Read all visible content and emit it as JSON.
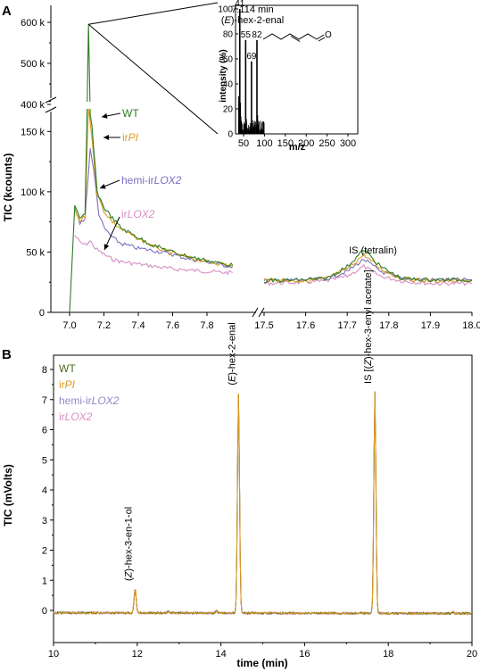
{
  "chart_data": [
    {
      "panel": "A",
      "type": "line",
      "ylabel": "TIC (kcounts)",
      "y_break": [
        200,
        400
      ],
      "y_ticks": [
        "0",
        "50 k",
        "100 k",
        "150 k",
        "400 k",
        "500 k",
        "600 k"
      ],
      "x_break": [
        7.95,
        17.5
      ],
      "x_ticks_left": [
        "7.0",
        "7.2",
        "7.4",
        "7.6",
        "7.8"
      ],
      "x_ticks_right": [
        "17.5",
        "17.6",
        "17.7",
        "17.8",
        "17.9",
        "18.0"
      ],
      "series": [
        {
          "name": "WT",
          "name_main": "WT",
          "name_italic": "",
          "color": "#2e7d24",
          "points_left": [
            [
              7.0,
              0
            ],
            [
              7.03,
              88
            ],
            [
              7.06,
              77
            ],
            [
              7.09,
              82
            ],
            [
              7.11,
              595
            ],
            [
              7.13,
              155
            ],
            [
              7.16,
              100
            ],
            [
              7.2,
              87
            ],
            [
              7.25,
              78
            ],
            [
              7.3,
              70
            ],
            [
              7.35,
              66
            ],
            [
              7.4,
              62
            ],
            [
              7.45,
              58
            ],
            [
              7.5,
              55
            ],
            [
              7.6,
              50
            ],
            [
              7.7,
              46
            ],
            [
              7.8,
              43
            ],
            [
              7.9,
              40
            ],
            [
              7.95,
              39
            ]
          ],
          "points_right": [
            [
              17.5,
              26
            ],
            [
              17.6,
              27
            ],
            [
              17.65,
              28
            ],
            [
              17.7,
              38
            ],
            [
              17.74,
              52
            ],
            [
              17.78,
              38
            ],
            [
              17.83,
              28
            ],
            [
              17.9,
              27
            ],
            [
              18.0,
              27
            ]
          ]
        },
        {
          "name": "irPI",
          "name_main": "ir",
          "name_italic": "PI",
          "color": "#e19a1f",
          "points_left": [
            [
              7.03,
              85
            ],
            [
              7.06,
              76
            ],
            [
              7.09,
              80
            ],
            [
              7.11,
              170
            ],
            [
              7.13,
              145
            ],
            [
              7.16,
              98
            ],
            [
              7.2,
              84
            ],
            [
              7.25,
              75
            ],
            [
              7.3,
              69
            ],
            [
              7.35,
              65
            ],
            [
              7.4,
              61
            ],
            [
              7.5,
              54
            ],
            [
              7.6,
              49
            ],
            [
              7.7,
              45
            ],
            [
              7.8,
              42
            ],
            [
              7.9,
              40
            ],
            [
              7.95,
              38
            ]
          ],
          "points_right": [
            [
              17.5,
              27
            ],
            [
              17.6,
              26
            ],
            [
              17.65,
              28
            ],
            [
              17.7,
              36
            ],
            [
              17.74,
              48
            ],
            [
              17.78,
              36
            ],
            [
              17.83,
              28
            ],
            [
              17.9,
              26
            ],
            [
              18.0,
              26
            ]
          ]
        },
        {
          "name": "hemi-irLOX2",
          "name_main": "hemi-ir",
          "name_italic": "LOX2",
          "color": "#7b6fc0",
          "points_left": [
            [
              7.03,
              86
            ],
            [
              7.06,
              74
            ],
            [
              7.09,
              78
            ],
            [
              7.12,
              136
            ],
            [
              7.14,
              118
            ],
            [
              7.17,
              82
            ],
            [
              7.2,
              70
            ],
            [
              7.25,
              62
            ],
            [
              7.3,
              57
            ],
            [
              7.35,
              55
            ],
            [
              7.4,
              53
            ],
            [
              7.5,
              51
            ],
            [
              7.6,
              48
            ],
            [
              7.7,
              44
            ],
            [
              7.8,
              42
            ],
            [
              7.9,
              39
            ],
            [
              7.95,
              38
            ]
          ],
          "points_right": [
            [
              17.5,
              26
            ],
            [
              17.6,
              27
            ],
            [
              17.65,
              28
            ],
            [
              17.7,
              34
            ],
            [
              17.74,
              44
            ],
            [
              17.78,
              34
            ],
            [
              17.83,
              28
            ],
            [
              17.9,
              27
            ],
            [
              18.0,
              27
            ]
          ]
        },
        {
          "name": "irLOX2",
          "name_main": "ir",
          "name_italic": "LOX2",
          "color": "#d68fc4",
          "points_left": [
            [
              7.03,
              64
            ],
            [
              7.06,
              58
            ],
            [
              7.09,
              56
            ],
            [
              7.12,
              59
            ],
            [
              7.15,
              53
            ],
            [
              7.2,
              48
            ],
            [
              7.25,
              44
            ],
            [
              7.3,
              42
            ],
            [
              7.4,
              40
            ],
            [
              7.5,
              38
            ],
            [
              7.6,
              36
            ],
            [
              7.7,
              35
            ],
            [
              7.8,
              34
            ],
            [
              7.9,
              33
            ],
            [
              7.95,
              33
            ]
          ],
          "points_right": [
            [
              17.5,
              24
            ],
            [
              17.6,
              25
            ],
            [
              17.65,
              26
            ],
            [
              17.7,
              30
            ],
            [
              17.74,
              38
            ],
            [
              17.78,
              30
            ],
            [
              17.83,
              26
            ],
            [
              17.9,
              24
            ],
            [
              18.0,
              24
            ]
          ]
        }
      ],
      "annotation": "IS (tetralin)",
      "inset": {
        "title_line1": "7.114 min",
        "title_line2": "(E)-hex-2-enal",
        "title_line2_italic": "E",
        "ylabel": "intensity (%)",
        "xlabel": "m/z",
        "x_ticks": [
          "50",
          "100",
          "150",
          "200",
          "250",
          "300"
        ],
        "y_ticks": [
          "0",
          "20",
          "40",
          "60",
          "80",
          "100"
        ],
        "peak_labels": [
          "41",
          "55",
          "69",
          "82"
        ],
        "peaks": [
          [
            39,
            30
          ],
          [
            40,
            15
          ],
          [
            41,
            100
          ],
          [
            42,
            25
          ],
          [
            43,
            14
          ],
          [
            53,
            8
          ],
          [
            54,
            6
          ],
          [
            55,
            75
          ],
          [
            56,
            12
          ],
          [
            57,
            8
          ],
          [
            67,
            6
          ],
          [
            68,
            5
          ],
          [
            69,
            58
          ],
          [
            70,
            7
          ],
          [
            81,
            6
          ],
          [
            82,
            75
          ],
          [
            83,
            15
          ],
          [
            97,
            10
          ],
          [
            98,
            8
          ]
        ]
      }
    },
    {
      "panel": "B",
      "type": "line",
      "ylabel": "TIC (mVolts)",
      "xlabel": "time (min)",
      "xlim": [
        10,
        20
      ],
      "ylim": [
        -0.5,
        8.2
      ],
      "x_ticks": [
        "10",
        "12",
        "14",
        "16",
        "18",
        "20"
      ],
      "y_ticks": [
        "0",
        "1",
        "2",
        "3",
        "4",
        "5",
        "6",
        "7",
        "8"
      ],
      "series": [
        {
          "name": "WT",
          "name_main": "WT",
          "name_italic": "",
          "color": "#4a6a1e"
        },
        {
          "name": "irPI",
          "name_main": "ir",
          "name_italic": "PI",
          "color": "#e19a1f"
        },
        {
          "name": "hemi-irLOX2",
          "name_main": "hemi-ir",
          "name_italic": "LOX2",
          "color": "#9387c9"
        },
        {
          "name": "irLOX2",
          "name_main": "ir",
          "name_italic": "LOX2",
          "color": "#d68fc4"
        }
      ],
      "peaks": [
        {
          "x": 11.95,
          "y": 0.8,
          "label": "(Z)-hex-3-en-1-ol",
          "label_italic": "Z"
        },
        {
          "x": 14.42,
          "y": 7.3,
          "label": "(E)-hex-2-enal",
          "label_italic": "E"
        },
        {
          "x": 17.68,
          "y": 7.35,
          "label": "IS [(Z)-hex-3-enyl acetate]",
          "label_italic": "Z"
        }
      ],
      "minor_peaks": [
        [
          12.75,
          0.05
        ],
        [
          13.9,
          0.07
        ],
        [
          19.55,
          0.05
        ]
      ]
    }
  ],
  "panel_labels": [
    "A",
    "B"
  ]
}
